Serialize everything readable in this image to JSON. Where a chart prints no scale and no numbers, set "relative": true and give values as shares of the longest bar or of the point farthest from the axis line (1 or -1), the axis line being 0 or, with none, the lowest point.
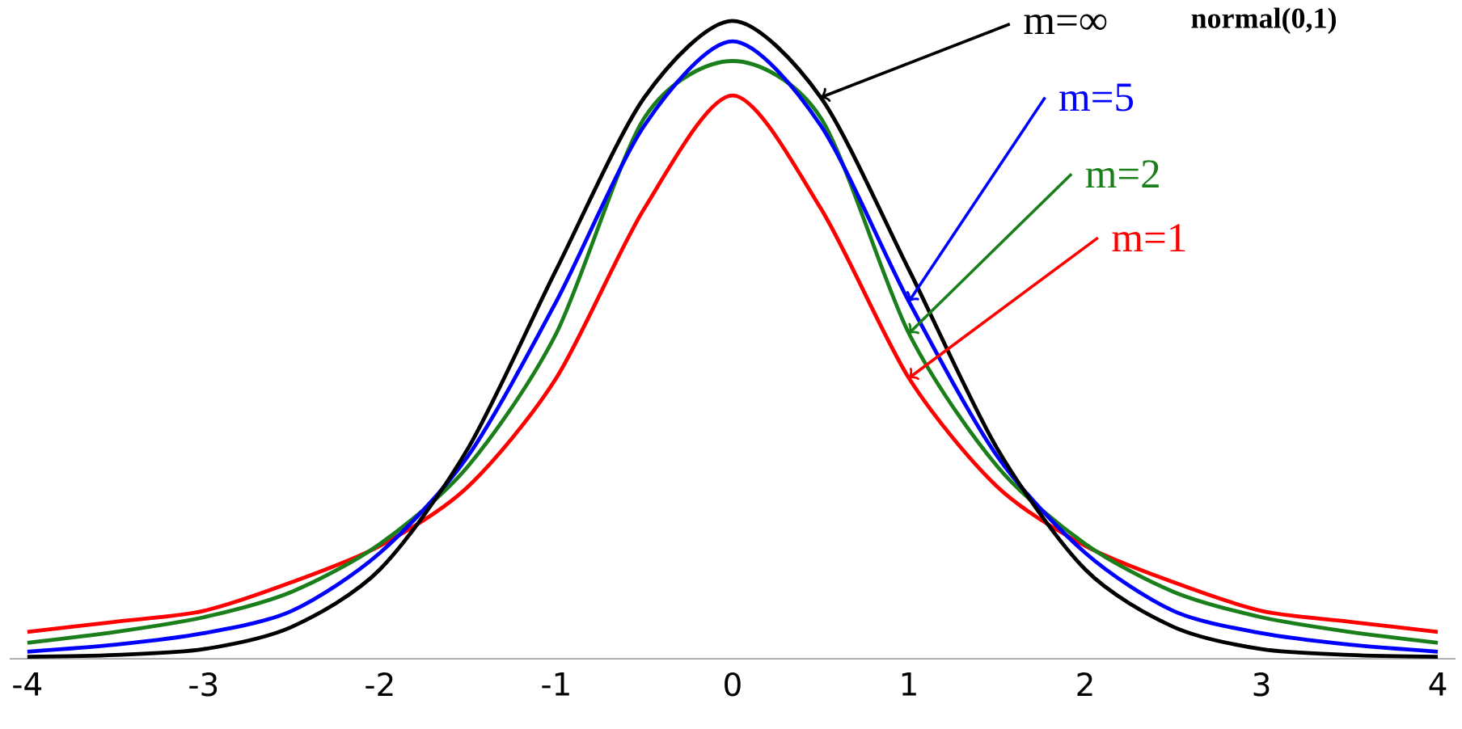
{
  "chart_data": {
    "type": "line",
    "relative": true,
    "x": [
      -4,
      -3.5,
      -3,
      -2.5,
      -2,
      -1.5,
      -1,
      -0.5,
      0,
      0.5,
      1,
      1.5,
      2,
      2.5,
      3,
      3.5,
      4
    ],
    "xlim": [
      -4.1,
      4.1
    ],
    "xticks": [
      -4,
      -3,
      -2,
      -1,
      0,
      1,
      2,
      3,
      4
    ],
    "grid": false,
    "marker": "none",
    "line_style": "solid",
    "series": [
      {
        "name": "m=1",
        "color": "#ff0000",
        "values": [
          0.042,
          0.058,
          0.075,
          0.12,
          0.177,
          0.27,
          0.44,
          0.706,
          0.883,
          0.706,
          0.44,
          0.27,
          0.177,
          0.12,
          0.075,
          0.058,
          0.042
        ]
      },
      {
        "name": "m=2",
        "color": "#1a7f1a",
        "values": [
          0.025,
          0.042,
          0.065,
          0.105,
          0.18,
          0.302,
          0.51,
          0.848,
          0.937,
          0.848,
          0.51,
          0.302,
          0.18,
          0.105,
          0.065,
          0.042,
          0.025
        ]
      },
      {
        "name": "m=5",
        "color": "#0000ff",
        "values": [
          0.011,
          0.022,
          0.04,
          0.075,
          0.166,
          0.318,
          0.56,
          0.836,
          0.968,
          0.836,
          0.56,
          0.318,
          0.166,
          0.075,
          0.04,
          0.022,
          0.011
        ]
      },
      {
        "name": "m=∞",
        "color": "#000000",
        "values": [
          0.003,
          0.006,
          0.015,
          0.05,
          0.14,
          0.33,
          0.61,
          0.88,
          1,
          0.88,
          0.61,
          0.33,
          0.14,
          0.05,
          0.015,
          0.006,
          0.003
        ]
      }
    ],
    "annotations": [
      "normal(0,1)"
    ]
  }
}
